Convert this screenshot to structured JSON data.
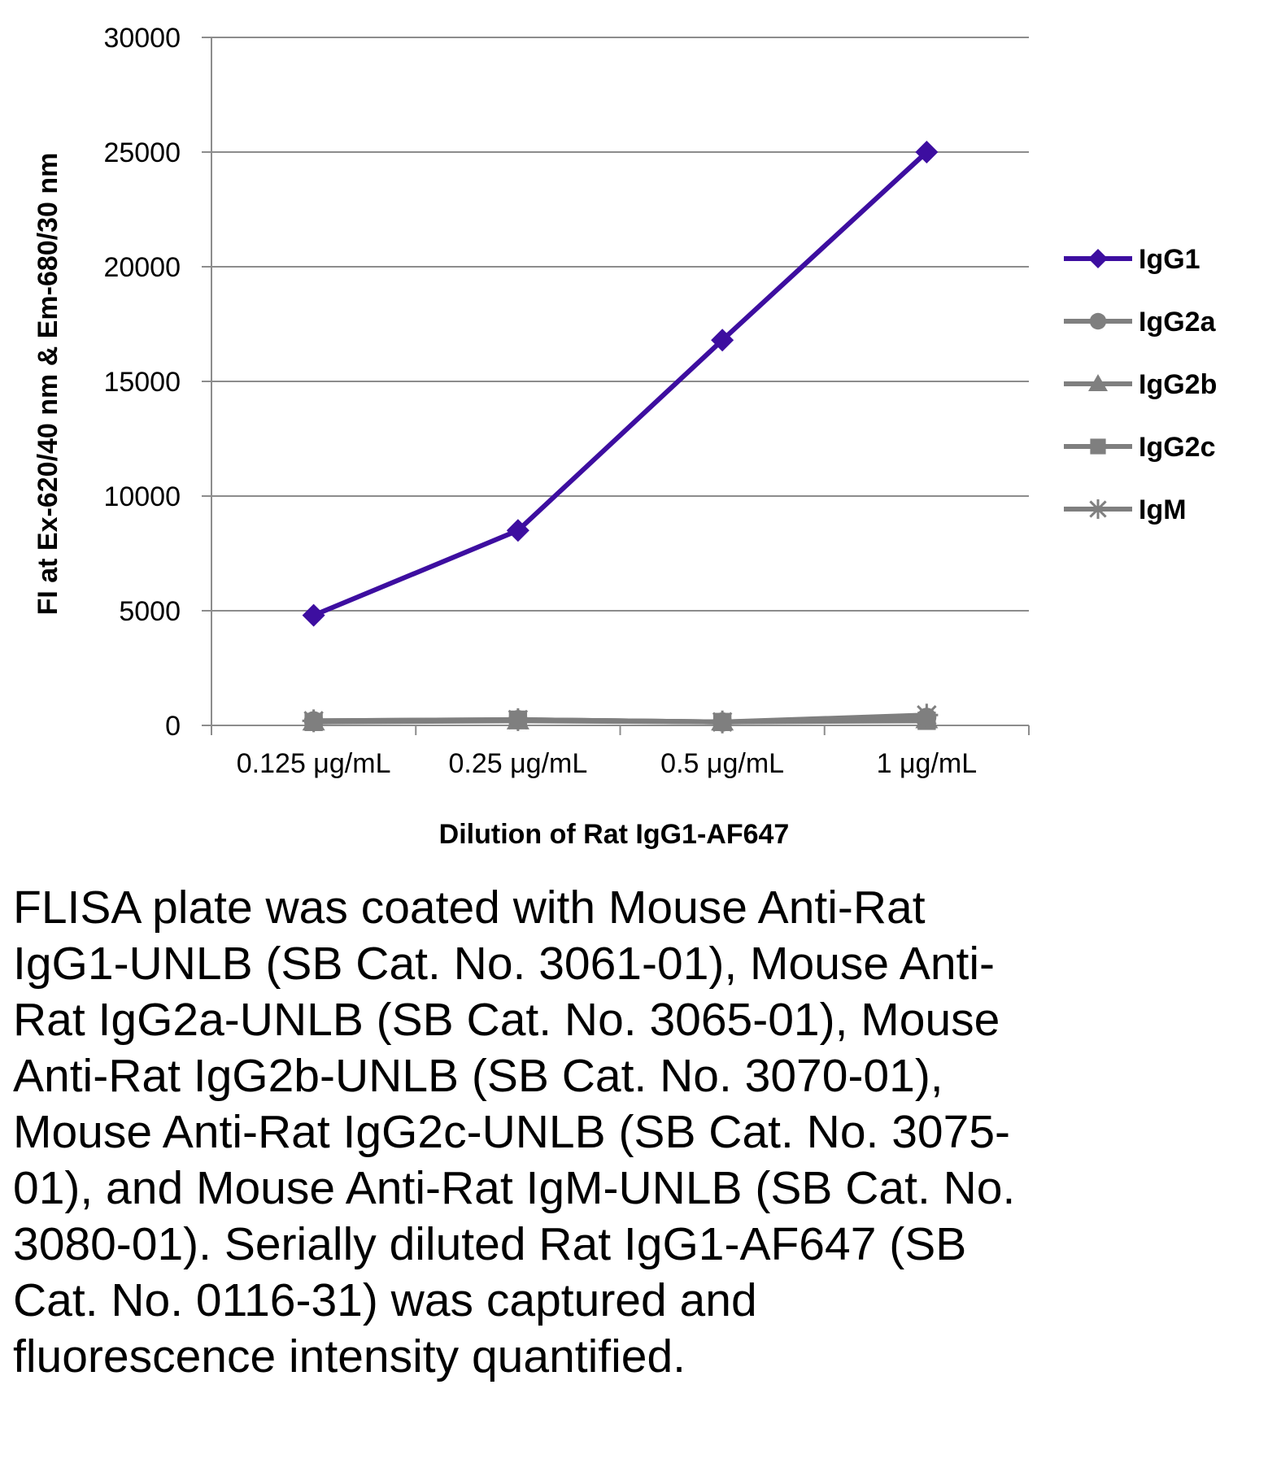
{
  "chart_data": {
    "type": "line",
    "categories": [
      "0.125 μg/mL",
      "0.25 μg/mL",
      "0.5 μg/mL",
      "1 μg/mL"
    ],
    "xlabel": "Dilution of Rat IgG1-AF647",
    "ylabel": "FI at Ex-620/40 nm & Em-680/30 nm",
    "ylim": [
      0,
      30000
    ],
    "yticks": [
      0,
      5000,
      10000,
      15000,
      20000,
      25000,
      30000
    ],
    "grid": true,
    "legend_position": "right",
    "series": [
      {
        "name": "IgG1",
        "marker": "diamond",
        "color": "#3d0ea0",
        "values": [
          4800,
          8500,
          16800,
          25000
        ]
      },
      {
        "name": "IgG2a",
        "marker": "circle",
        "color": "#7f7f7f",
        "values": [
          200,
          250,
          150,
          350
        ]
      },
      {
        "name": "IgG2b",
        "marker": "triangle",
        "color": "#7f7f7f",
        "values": [
          150,
          200,
          150,
          250
        ]
      },
      {
        "name": "IgG2c",
        "marker": "square",
        "color": "#7f7f7f",
        "values": [
          150,
          250,
          150,
          200
        ]
      },
      {
        "name": "IgM",
        "marker": "star",
        "color": "#7f7f7f",
        "values": [
          200,
          250,
          150,
          450
        ]
      }
    ]
  },
  "caption": "FLISA plate was coated with Mouse Anti-Rat IgG1-UNLB (SB Cat. No. 3061-01), Mouse Anti-Rat IgG2a-UNLB (SB Cat. No. 3065-01), Mouse Anti-Rat IgG2b-UNLB (SB Cat. No. 3070-01), Mouse Anti-Rat IgG2c-UNLB (SB Cat. No. 3075-01), and Mouse Anti-Rat IgM-UNLB (SB Cat. No. 3080-01).  Serially diluted Rat IgG1-AF647 (SB Cat. No. 0116-31) was captured and fluorescence intensity quantified."
}
